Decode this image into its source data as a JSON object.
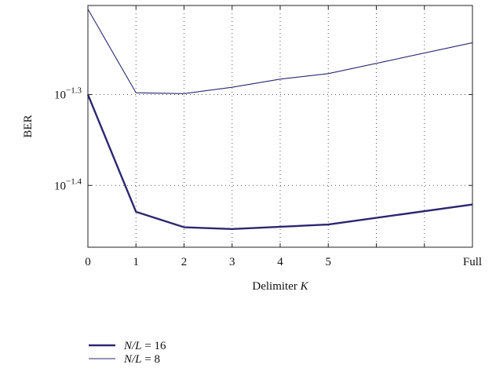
{
  "chart_data": {
    "type": "line",
    "xlabel": "Delimiter K",
    "ylabel": "BER",
    "x_tick_labels": [
      "0",
      "1",
      "2",
      "3",
      "4",
      "5",
      "Full"
    ],
    "x": [
      0,
      1,
      2,
      3,
      4,
      5,
      6,
      7,
      8
    ],
    "xlim": [
      0,
      8
    ],
    "y_scale": "log",
    "y_tick_labels": [
      "10^-1.3",
      "10^-1.4"
    ],
    "y_ticks": [
      -1.3,
      -1.4
    ],
    "ylim": [
      -1.468,
      -1.202
    ],
    "grid": true,
    "legend_position": "bottom-left",
    "series": [
      {
        "name": "N/L = 16",
        "style": "thick",
        "x": [
          0,
          1,
          2,
          3,
          5,
          8
        ],
        "values": [
          -1.3,
          -1.429,
          -1.446,
          -1.448,
          -1.443,
          -1.421
        ]
      },
      {
        "name": "N/L = 8",
        "style": "thin",
        "x": [
          0,
          1,
          2,
          3,
          4,
          5,
          8
        ],
        "values": [
          -1.206,
          -1.298,
          -1.299,
          -1.292,
          -1.283,
          -1.277,
          -1.243
        ]
      }
    ],
    "line_color": "#2b2770"
  }
}
